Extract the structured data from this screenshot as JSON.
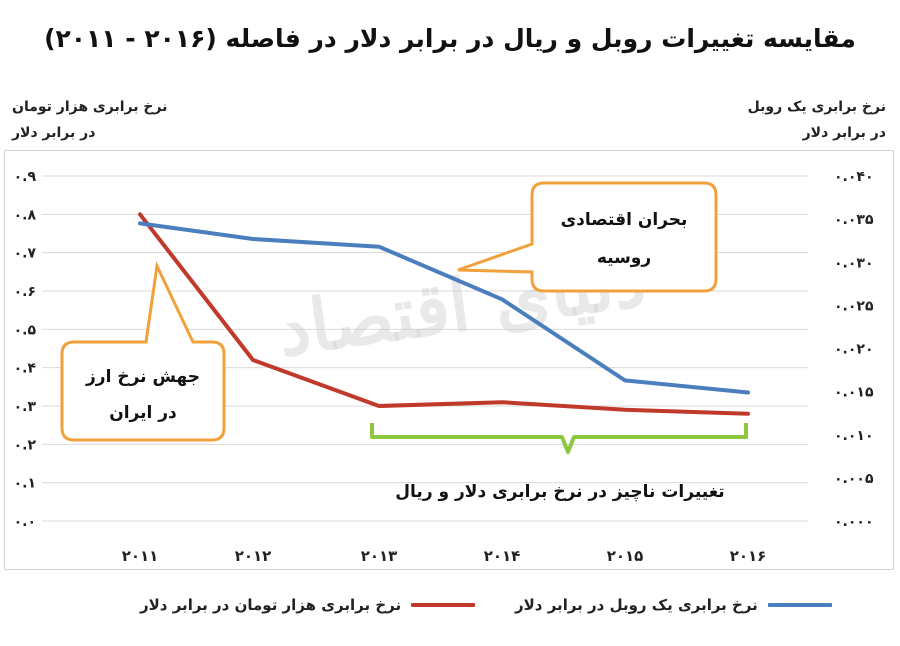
{
  "chart_data": {
    "type": "line",
    "title": "مقایسه تغییرات روبل و ریال در برابر دلار در فاصله (۲۰۱۶ - ۲۰۱۱)",
    "ylabel_left": [
      "نرخ برابری هزار تومان",
      "در برابر دلار"
    ],
    "ylabel_right": [
      "نرخ برابری یک روبل",
      "در برابر دلار"
    ],
    "categories": [
      "۲۰۱۱",
      "۲۰۱۲",
      "۲۰۱۳",
      "۲۰۱۴",
      "۲۰۱۵",
      "۲۰۱۶"
    ],
    "ylim_left": [
      0,
      0.9
    ],
    "ylim_right": [
      0,
      0.04
    ],
    "yticks_left": [
      "۰.۰",
      "۰.۱",
      "۰.۲",
      "۰.۳",
      "۰.۴",
      "۰.۵",
      "۰.۶",
      "۰.۷",
      "۰.۸",
      "۰.۹"
    ],
    "yticks_right": [
      "۰.۰۰۰",
      "۰.۰۰۵",
      "۰.۰۱۰",
      "۰.۰۱۵",
      "۰.۰۲۰",
      "۰.۰۲۵",
      "۰.۰۳۰",
      "۰.۰۳۵",
      "۰.۰۴۰"
    ],
    "series": [
      {
        "name": "نرخ برابری هزار تومان در برابر دلار",
        "axis": "left",
        "color": "#c0392b",
        "values": [
          0.8,
          0.42,
          0.3,
          0.31,
          0.29,
          0.28
        ]
      },
      {
        "name": "نرخ برابری یک روبل در برابر دلار",
        "axis": "right",
        "color": "#4a7ebf",
        "values": [
          0.0345,
          0.0327,
          0.0318,
          0.0257,
          0.0163,
          0.0149
        ]
      }
    ],
    "grid": true,
    "legend": "bottom",
    "annotations": {
      "iran": [
        "جهش نرخ ارز",
        "در ایران"
      ],
      "russia": [
        "بحران اقتصادی",
        "روسیه"
      ],
      "bracket": "تغییرات ناچیز در نرخ برابری دلار و ریال"
    },
    "watermark": "دنیای اقتصاد"
  },
  "colors": {
    "callout_border": "#f0a13c",
    "bracket": "#8dc63f",
    "grid": "#d9d9d9"
  }
}
